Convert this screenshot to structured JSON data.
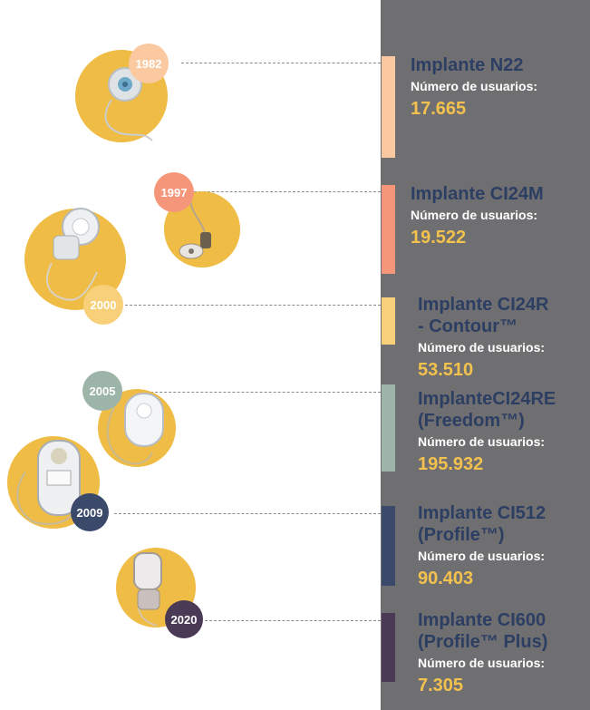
{
  "colors": {
    "panel": "#6f6f71",
    "accent_circle": "#efbc45",
    "title": "#2d3e63",
    "value": "#f2c14e"
  },
  "timeline": [
    {
      "year": "1982",
      "title_lines": [
        "Implante N22"
      ],
      "users_label": "Número de usuarios:",
      "users": "17.665",
      "color": "#fbc9a0"
    },
    {
      "year": "1997",
      "title_lines": [
        "Implante CI24M"
      ],
      "users_label": "Número de usuarios:",
      "users": "19.522",
      "color": "#f5967a"
    },
    {
      "year": "2000",
      "title_lines": [
        "Implante CI24R",
        "- Contour™"
      ],
      "users_label": "Número de usuarios:",
      "users": "53.510",
      "color": "#f8d07a"
    },
    {
      "year": "2005",
      "title_lines": [
        "ImplanteCI24RE",
        "(Freedom™)"
      ],
      "users_label": "Número de usuarios:",
      "users": "195.932",
      "color": "#9db4a8"
    },
    {
      "year": "2009",
      "title_lines": [
        "Implante CI512",
        "(Profile™)"
      ],
      "users_label": "Número de usuarios:",
      "users": "90.403",
      "color": "#3b4a6b"
    },
    {
      "year": "2020",
      "title_lines": [
        "Implante CI600",
        "(Profile™ Plus)"
      ],
      "users_label": "Número de usuarios:",
      "users": "7.305",
      "color": "#4b3a55"
    }
  ]
}
